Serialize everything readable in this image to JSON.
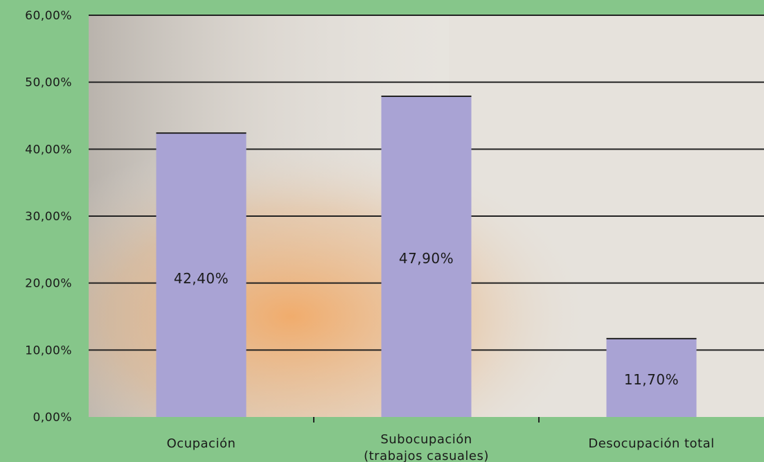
{
  "chart_data": {
    "type": "bar",
    "categories": [
      [
        "Ocupación"
      ],
      [
        "Subocupación",
        "(trabajos casuales)"
      ],
      [
        "Desocupación total"
      ]
    ],
    "values": [
      42.4,
      47.9,
      11.7
    ],
    "data_labels": [
      "42,40%",
      "47,90%",
      "11,70%"
    ],
    "ylim": [
      0,
      60
    ],
    "yticks": [
      0,
      10,
      20,
      30,
      40,
      50,
      60
    ],
    "ytick_labels": [
      "0,00%",
      "10,00%",
      "20,00%",
      "30,00%",
      "40,00%",
      "50,00%",
      "60,00%"
    ],
    "grid": true,
    "title": "",
    "xlabel": "",
    "ylabel": ""
  },
  "colors": {
    "background": "#86c68a",
    "bar_fill": "#a9a3d4",
    "bar_stroke": "#222222",
    "gridline": "#222222",
    "plot_photo_tint": "#e6e2dc"
  }
}
